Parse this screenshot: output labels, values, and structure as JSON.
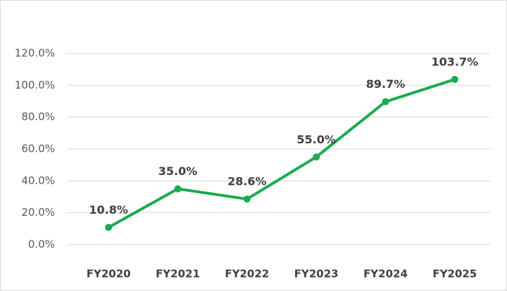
{
  "chart_data": {
    "type": "line",
    "categories": [
      "FY2020",
      "FY2021",
      "FY2022",
      "FY2023",
      "FY2024",
      "FY2025"
    ],
    "values": [
      10.8,
      35.0,
      28.6,
      55.0,
      89.7,
      103.7
    ],
    "value_labels": [
      "10.8%",
      "35.0%",
      "28.6%",
      "55.0%",
      "89.7%",
      "103.7%"
    ],
    "color": "#1aab4f",
    "ylim": [
      0,
      120
    ],
    "yticks": [
      {
        "value": 0,
        "label": "0.0%"
      },
      {
        "value": 20,
        "label": "20.0%"
      },
      {
        "value": 40,
        "label": "40.0%"
      },
      {
        "value": 60,
        "label": "60.0%"
      },
      {
        "value": 80,
        "label": "80.0%"
      },
      {
        "value": 100,
        "label": "100.0%"
      },
      {
        "value": 120,
        "label": "120.0%"
      }
    ],
    "grid": true
  }
}
